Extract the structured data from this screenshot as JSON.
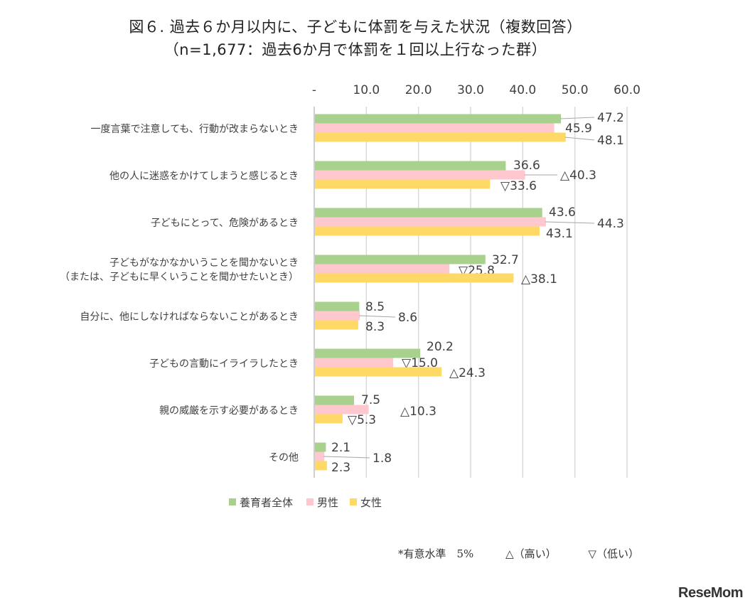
{
  "chart_data": {
    "type": "bar",
    "orientation": "horizontal",
    "title": "図６. 過去６か月以内に、子どもに体罰を与えた状況（複数回答）",
    "subtitle": "（n=1,677：過去6か月で体罰を１回以上行なった群）",
    "categories": [
      "一度言葉で注意しても、行動が改まらないとき",
      "他の人に迷惑をかけてしまうと感じるとき",
      "子どもにとって、危険があるとき",
      "子どもがなかなかいうことを聞かないとき\n（または、子どもに早くいうことを聞かせたいとき）",
      "自分に、他にしなければならないことがあるとき",
      "子どもの言動にイライラしたとき",
      "親の威厳を示す必要があるとき",
      "その他"
    ],
    "series": [
      {
        "name": "養育者全体",
        "color": "#a9d18e",
        "values": [
          47.2,
          36.6,
          43.6,
          32.7,
          8.5,
          20.2,
          7.5,
          2.1
        ],
        "labels": [
          "47.2",
          "36.6",
          "43.6",
          "32.7",
          "8.5",
          "20.2",
          "7.5",
          "2.1"
        ]
      },
      {
        "name": "男性",
        "color": "#ffc7ce",
        "values": [
          45.9,
          40.3,
          44.3,
          25.8,
          8.6,
          15.0,
          10.3,
          1.8
        ],
        "labels": [
          "45.9",
          "△40.3",
          "44.3",
          "▽25.8",
          "8.6",
          "▽15.0",
          "△10.3",
          "1.8"
        ]
      },
      {
        "name": "女性",
        "color": "#ffd966",
        "values": [
          48.1,
          33.6,
          43.1,
          38.1,
          8.3,
          24.3,
          5.3,
          2.3
        ],
        "labels": [
          "48.1",
          "▽33.6",
          "43.1",
          "△38.1",
          "8.3",
          "△24.3",
          "▽5.3",
          "2.3"
        ]
      }
    ],
    "xlim": [
      0,
      60
    ],
    "xticks": [
      "-",
      "10.0",
      "20.0",
      "30.0",
      "40.0",
      "50.0",
      "60.0"
    ],
    "axis_position": "top",
    "grid": true,
    "legend": "bottom"
  },
  "footnote": {
    "significance": "*有意水準　5%",
    "high": "△（高い）",
    "low": "▽（低い）"
  },
  "logo": "ReseMom"
}
